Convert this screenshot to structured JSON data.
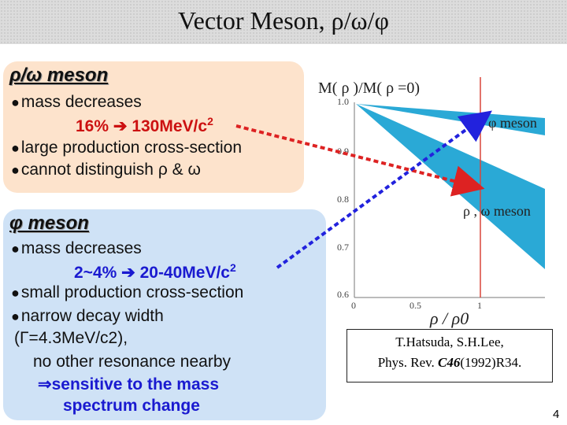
{
  "slide": {
    "title": "Vector Meson, ρ/ω/φ",
    "page_number": "4"
  },
  "rho_box": {
    "heading": "ρ/ω meson",
    "bullets": [
      "mass decreases",
      "large production cross-section",
      "cannot distinguish ρ & ω"
    ],
    "highlight": "16%  130MeV/c2"
  },
  "phi_box": {
    "heading": "φ meson",
    "bullets": [
      "mass decreases",
      "small production cross-section",
      "narrow decay width"
    ],
    "highlight": "2~4%  20-40MeV/c2",
    "width_note": "(Γ=4.3MeV/c2),",
    "resonance_note": "no other resonance nearby",
    "conclusion_line1": "⇒sensitive to the mass",
    "conclusion_line2": "spectrum change"
  },
  "plot": {
    "ylabel": "M( ρ )/M( ρ =0)",
    "xlabel": "ρ / ρ0",
    "y_ticks": [
      "1.0",
      "0.9",
      "0.8",
      "0.7",
      "0.6"
    ],
    "x_ticks": [
      "0",
      "0.5",
      "1"
    ],
    "band_labels": {
      "phi": "φ meson",
      "rho_omega": "ρ , ω meson"
    },
    "band_color": "#2aa9d6",
    "line_color": "#d9453a"
  },
  "citation": {
    "line1": "T.Hatsuda, S.H.Lee,",
    "line2_prefix": "Phys. Rev. ",
    "line2_volume": "C46",
    "line2_suffix": "(1992)R34."
  }
}
